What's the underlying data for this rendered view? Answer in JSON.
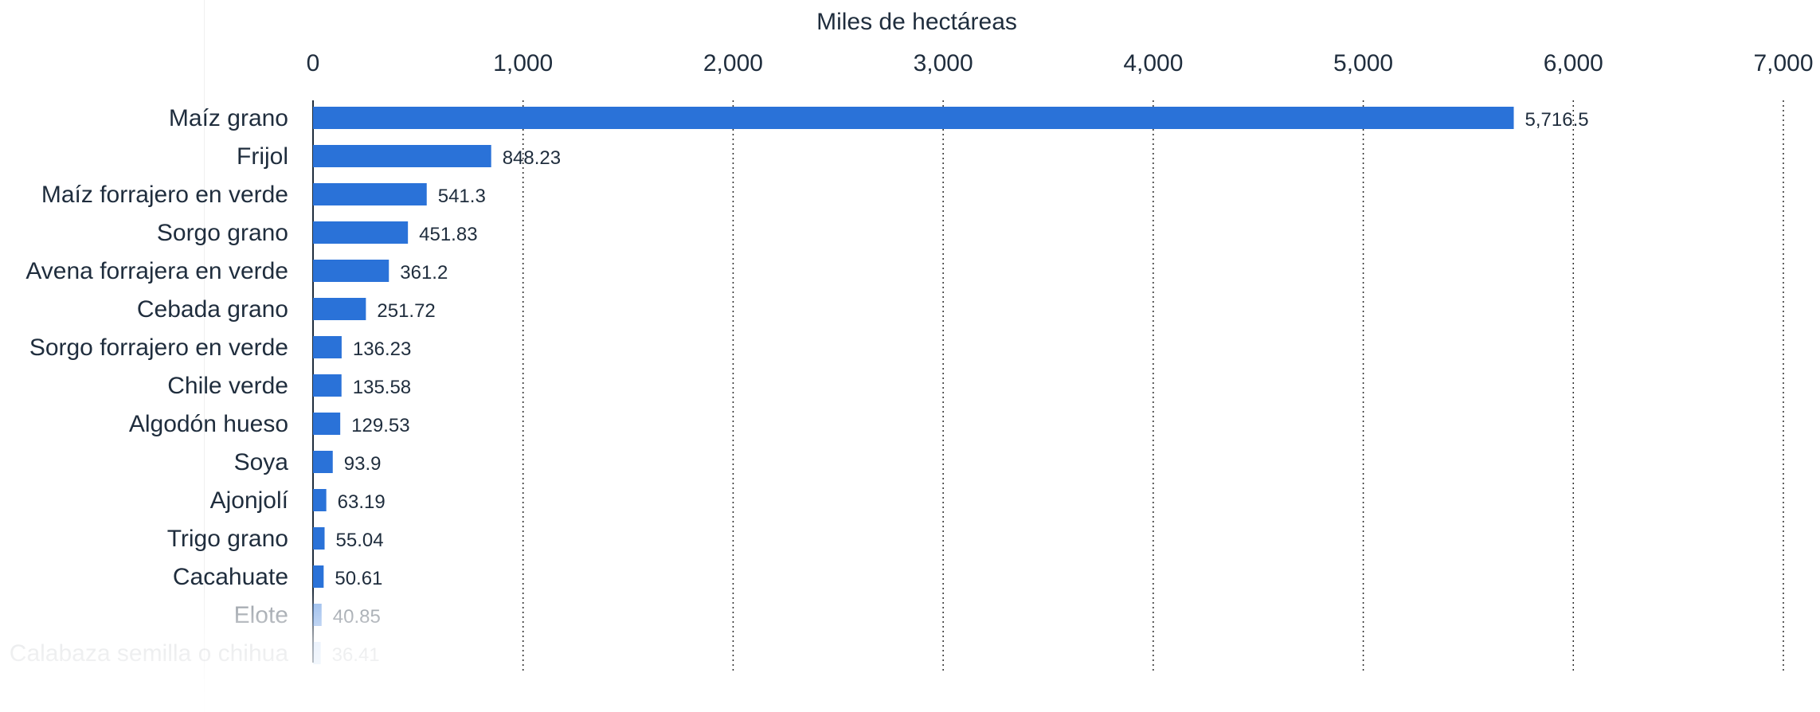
{
  "chart_data": {
    "type": "bar",
    "orientation": "horizontal",
    "xlabel": "Miles de hectáreas",
    "xlim": [
      0,
      7000
    ],
    "ticks": [
      {
        "value": 0,
        "label": "0"
      },
      {
        "value": 1000,
        "label": "1,000"
      },
      {
        "value": 2000,
        "label": "2,000"
      },
      {
        "value": 3000,
        "label": "3,000"
      },
      {
        "value": 4000,
        "label": "4,000"
      },
      {
        "value": 5000,
        "label": "5,000"
      },
      {
        "value": 6000,
        "label": "6,000"
      },
      {
        "value": 7000,
        "label": "7,000"
      }
    ],
    "grid": "vertical-dotted",
    "bar_color": "#2a72d8",
    "categories": [
      "Maíz grano",
      "Frijol",
      "Maíz forrajero en verde",
      "Sorgo grano",
      "Avena forrajera en verde",
      "Cebada grano",
      "Sorgo forrajero en verde",
      "Chile verde",
      "Algodón hueso",
      "Soya",
      "Ajonjolí",
      "Trigo grano",
      "Cacahuate",
      "Elote",
      "Calabaza semilla o chihua"
    ],
    "values": [
      5716.5,
      848.23,
      541.3,
      451.83,
      361.2,
      251.72,
      136.23,
      135.58,
      129.53,
      93.9,
      63.19,
      55.04,
      50.61,
      40.85,
      36.41
    ],
    "value_labels": [
      "5,716.5",
      "848.23",
      "541.3",
      "451.83",
      "361.2",
      "251.72",
      "136.23",
      "135.58",
      "129.53",
      "93.9",
      "63.19",
      "55.04",
      "50.61",
      "40.85",
      "36.41"
    ]
  }
}
